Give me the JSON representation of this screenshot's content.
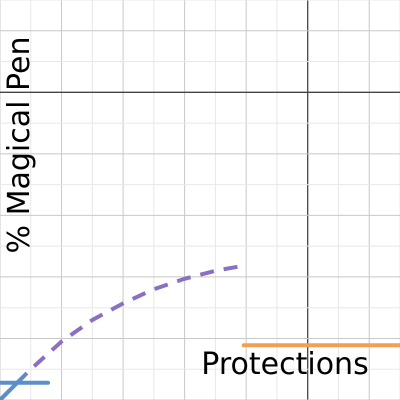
{
  "chart_data": {
    "type": "line",
    "x_label": "Protections",
    "y_label": "% Magical Pen",
    "xlim": [
      -5,
      1.5
    ],
    "ylim": [
      -5,
      1.5
    ],
    "xticks": [
      -5,
      -4.5,
      -4,
      -3.5,
      -3,
      -2.5,
      -2,
      -1.5,
      -1,
      -0.5,
      0,
      0.5,
      1,
      1.5
    ],
    "yticks": [
      -5,
      -4.5,
      -4,
      -3.5,
      -3,
      -2.5,
      -2,
      -1.5,
      -1,
      -0.5,
      0,
      0.5,
      1,
      1.5
    ],
    "grid": true,
    "series": [
      {
        "color": "#8a70c0",
        "dashed": true,
        "x": [
          -5,
          -4.5,
          -4,
          -3.5,
          -3,
          -2.5,
          -2,
          -1.5,
          -1
        ],
        "values": [
          -5.0,
          -4.5,
          -4.05,
          -3.7,
          -3.43,
          -3.2,
          -3.03,
          -2.9,
          -2.81
        ]
      },
      {
        "color": "#5b8fc7",
        "dashed": false,
        "x": [
          -5,
          -4.22
        ],
        "values": [
          -4.72,
          -4.72
        ]
      },
      {
        "color": "#5b8fc7",
        "dashed": false,
        "x": [
          -5.0,
          -4.6
        ],
        "values": [
          -5.0,
          -4.6
        ]
      },
      {
        "color": "#f0a050",
        "dashed": false,
        "x": [
          -1.04,
          1.5
        ],
        "values": [
          -4.11,
          -4.11
        ]
      }
    ]
  }
}
